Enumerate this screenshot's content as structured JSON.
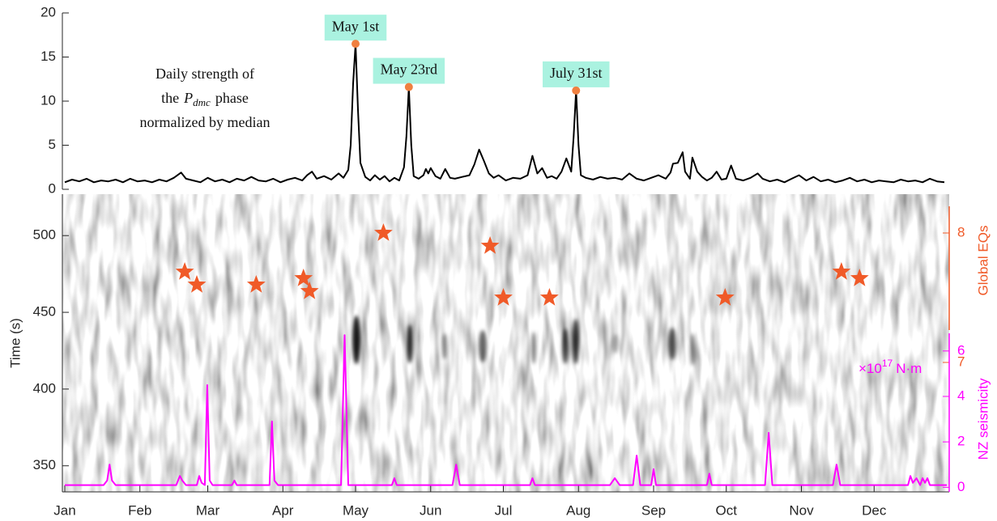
{
  "chart_data": [
    {
      "type": "line",
      "xlim": [
        0,
        366
      ],
      "ylim": [
        0,
        20
      ],
      "yticks": [
        0,
        5,
        10,
        15,
        20
      ],
      "note": {
        "line1": "Daily strength of",
        "line2": {
          "pre": "the",
          "symbol": "P",
          "subscript": "dmc",
          "post": "phase"
        },
        "line3": "normalized by median"
      },
      "series": [
        {
          "color": "#000000",
          "x": [
            1,
            4,
            7,
            10,
            13,
            16,
            19,
            22,
            25,
            28,
            31,
            34,
            37,
            40,
            43,
            46,
            49,
            51,
            54,
            57,
            60,
            63,
            66,
            69,
            72,
            75,
            78,
            81,
            84,
            87,
            90,
            93,
            96,
            99,
            101,
            103,
            105,
            108,
            111,
            114,
            116,
            118,
            119,
            120,
            121,
            122,
            123,
            125,
            127,
            129,
            131,
            133,
            135,
            137,
            139,
            141,
            142,
            143,
            144,
            145,
            147,
            149,
            150,
            151,
            152,
            154,
            156,
            158,
            160,
            162,
            165,
            168,
            170,
            172,
            174,
            176,
            178,
            180,
            183,
            186,
            189,
            192,
            194,
            196,
            198,
            200,
            202,
            204,
            206,
            208,
            210,
            211,
            212,
            213,
            214,
            216,
            219,
            222,
            225,
            228,
            231,
            234,
            237,
            240,
            243,
            246,
            249,
            251,
            252,
            254,
            256,
            257,
            259,
            260,
            262,
            264,
            266,
            268,
            270,
            272,
            274,
            276,
            278,
            281,
            284,
            287,
            289,
            292,
            295,
            298,
            301,
            304,
            307,
            310,
            313,
            316,
            319,
            322,
            325,
            328,
            331,
            334,
            337,
            340,
            343,
            346,
            349,
            352,
            355,
            358,
            361,
            364
          ],
          "values": [
            0.8,
            1.1,
            0.9,
            1.2,
            0.8,
            1.0,
            0.9,
            1.1,
            0.8,
            1.2,
            0.9,
            1.0,
            0.8,
            1.1,
            0.9,
            1.3,
            1.9,
            1.2,
            1.0,
            0.8,
            1.3,
            0.9,
            1.1,
            0.8,
            1.2,
            1.0,
            1.4,
            1.0,
            0.9,
            1.2,
            0.8,
            1.1,
            1.3,
            1.0,
            1.6,
            2.0,
            1.2,
            1.5,
            1.1,
            1.8,
            1.3,
            2.2,
            5,
            12,
            16.5,
            9,
            3,
            1.4,
            1.0,
            1.6,
            1.1,
            1.5,
            0.9,
            1.3,
            1.0,
            2.5,
            6,
            11.6,
            5,
            1.5,
            1.2,
            1.6,
            2.3,
            1.8,
            2.4,
            1.5,
            1.2,
            2.3,
            1.3,
            1.2,
            1.4,
            1.6,
            2.8,
            4.5,
            3.2,
            1.8,
            1.3,
            1.6,
            1.0,
            1.3,
            1.2,
            1.6,
            3.8,
            1.8,
            2.4,
            1.3,
            1.5,
            1.2,
            2.0,
            3.5,
            2.0,
            6,
            11.2,
            5,
            1.6,
            1.3,
            1.1,
            1.4,
            1.2,
            1.3,
            1.1,
            1.8,
            1.2,
            1.0,
            1.3,
            1.6,
            1.2,
            1.9,
            2.9,
            3.0,
            4.2,
            2.0,
            1.2,
            3.6,
            2.0,
            1.4,
            1.0,
            1.3,
            2.0,
            1.1,
            1.2,
            2.7,
            1.2,
            1.0,
            1.3,
            1.8,
            1.2,
            0.9,
            1.1,
            0.8,
            1.2,
            1.6,
            1.0,
            1.4,
            0.9,
            1.1,
            0.8,
            1.0,
            1.3,
            0.9,
            1.1,
            0.8,
            1.0,
            0.9,
            0.8,
            1.1,
            0.9,
            1.0,
            0.8,
            1.2,
            0.9,
            0.8
          ]
        }
      ],
      "highlights": {
        "color": "#f08040",
        "box_color": "#aaf2e0",
        "x": [
          121,
          143,
          212
        ],
        "values": [
          16.5,
          11.6,
          11.2
        ],
        "labels": [
          "May 1st",
          "May 23rd",
          "July 31st"
        ]
      }
    },
    {
      "type": "combo",
      "xlim": [
        0,
        366
      ],
      "xticks": [
        {
          "value": 1,
          "label": "Jan"
        },
        {
          "value": 32,
          "label": "Feb"
        },
        {
          "value": 60,
          "label": "Mar"
        },
        {
          "value": 91,
          "label": "Apr"
        },
        {
          "value": 121,
          "label": "May"
        },
        {
          "value": 152,
          "label": "Jun"
        },
        {
          "value": 182,
          "label": "Jul"
        },
        {
          "value": 213,
          "label": "Aug"
        },
        {
          "value": 244,
          "label": "Sep"
        },
        {
          "value": 274,
          "label": "Oct"
        },
        {
          "value": 305,
          "label": "Nov"
        },
        {
          "value": 335,
          "label": "Dec"
        }
      ],
      "ylabel": "Time (s)",
      "ylim": [
        333,
        527
      ],
      "yticks": [
        350,
        400,
        450,
        500
      ],
      "y2lim": [
        6,
        8.3
      ],
      "y2ticks": [
        7,
        8
      ],
      "y3lim": [
        -0.2,
        12.9
      ],
      "y3ticks": [
        0,
        2,
        4,
        6
      ],
      "y3unit": {
        "prefix": "×10",
        "exponent": "17",
        "unit": "N·m"
      },
      "series": [
        {
          "name": "Global EQs",
          "type": "scatter",
          "marker": "star",
          "axis": "y2",
          "color": "#f05a28",
          "x": [
            50.5,
            55.5,
            80,
            99.5,
            102,
            132.5,
            176.5,
            182,
            201,
            273.5,
            321.5,
            329
          ],
          "values": [
            7.7,
            7.6,
            7.6,
            7.65,
            7.55,
            8.0,
            7.9,
            7.5,
            7.5,
            7.5,
            7.7,
            7.65
          ]
        },
        {
          "name": "NZ seismicity",
          "type": "line",
          "axis": "y3",
          "color": "#ff00ff",
          "x": [
            1,
            17,
            18.5,
            19.5,
            20.5,
            22,
            47,
            48.5,
            49.5,
            51,
            55.5,
            56.5,
            57.5,
            58.8,
            59.8,
            60.8,
            62,
            70,
            71,
            72,
            85.5,
            86.5,
            87.5,
            89,
            115,
            116.5,
            118,
            136,
            137,
            138,
            161,
            162.5,
            164,
            193,
            194,
            195,
            226,
            228,
            230,
            235.5,
            237,
            238.5,
            243,
            244,
            245,
            266,
            267,
            268,
            290,
            291.5,
            293,
            318,
            319.5,
            321,
            349,
            350,
            351,
            352.5,
            354,
            355,
            356,
            357,
            358,
            365
          ],
          "values": [
            0.1,
            0.1,
            0.3,
            1.0,
            0.3,
            0.1,
            0.1,
            0.5,
            0.3,
            0.1,
            0.1,
            0.5,
            0.2,
            0.1,
            4.5,
            0.3,
            0.1,
            0.1,
            0.3,
            0.1,
            0.1,
            2.9,
            0.3,
            0.1,
            0.1,
            6.7,
            0.1,
            0.1,
            0.4,
            0.1,
            0.1,
            1.0,
            0.1,
            0.1,
            0.4,
            0.1,
            0.1,
            0.4,
            0.1,
            0.1,
            1.4,
            0.1,
            0.1,
            0.8,
            0.1,
            0.1,
            0.6,
            0.1,
            0.1,
            2.4,
            0.1,
            0.1,
            1.0,
            0.1,
            0.1,
            0.5,
            0.2,
            0.4,
            0.1,
            0.4,
            0.2,
            0.4,
            0.1,
            0.1
          ]
        }
      ]
    }
  ]
}
